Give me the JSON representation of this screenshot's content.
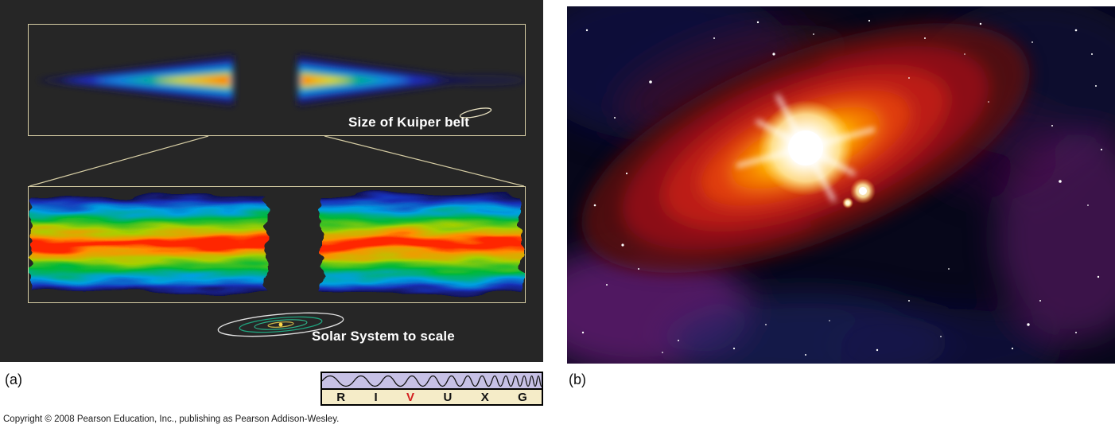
{
  "panel_a": {
    "label": "(a)",
    "captions": {
      "kuiper": "Size of Kuiper belt",
      "solar_system": "Solar System to scale"
    }
  },
  "panel_b": {
    "label": "(b)"
  },
  "wavelength_bar": {
    "letters": [
      {
        "char": "R",
        "highlighted": false
      },
      {
        "char": "I",
        "highlighted": false
      },
      {
        "char": "V",
        "highlighted": true
      },
      {
        "char": "U",
        "highlighted": false
      },
      {
        "char": "X",
        "highlighted": false
      },
      {
        "char": "G",
        "highlighted": false
      }
    ],
    "highlight_color": "#d21f1f"
  },
  "footer": {
    "copyright": "Copyright © 2008 Pearson Education, Inc., publishing as Pearson Addison-Wesley."
  },
  "colors": {
    "panel_background": "#262626",
    "frame_border": "#d6cda4",
    "caption_text": "#ffffff"
  }
}
